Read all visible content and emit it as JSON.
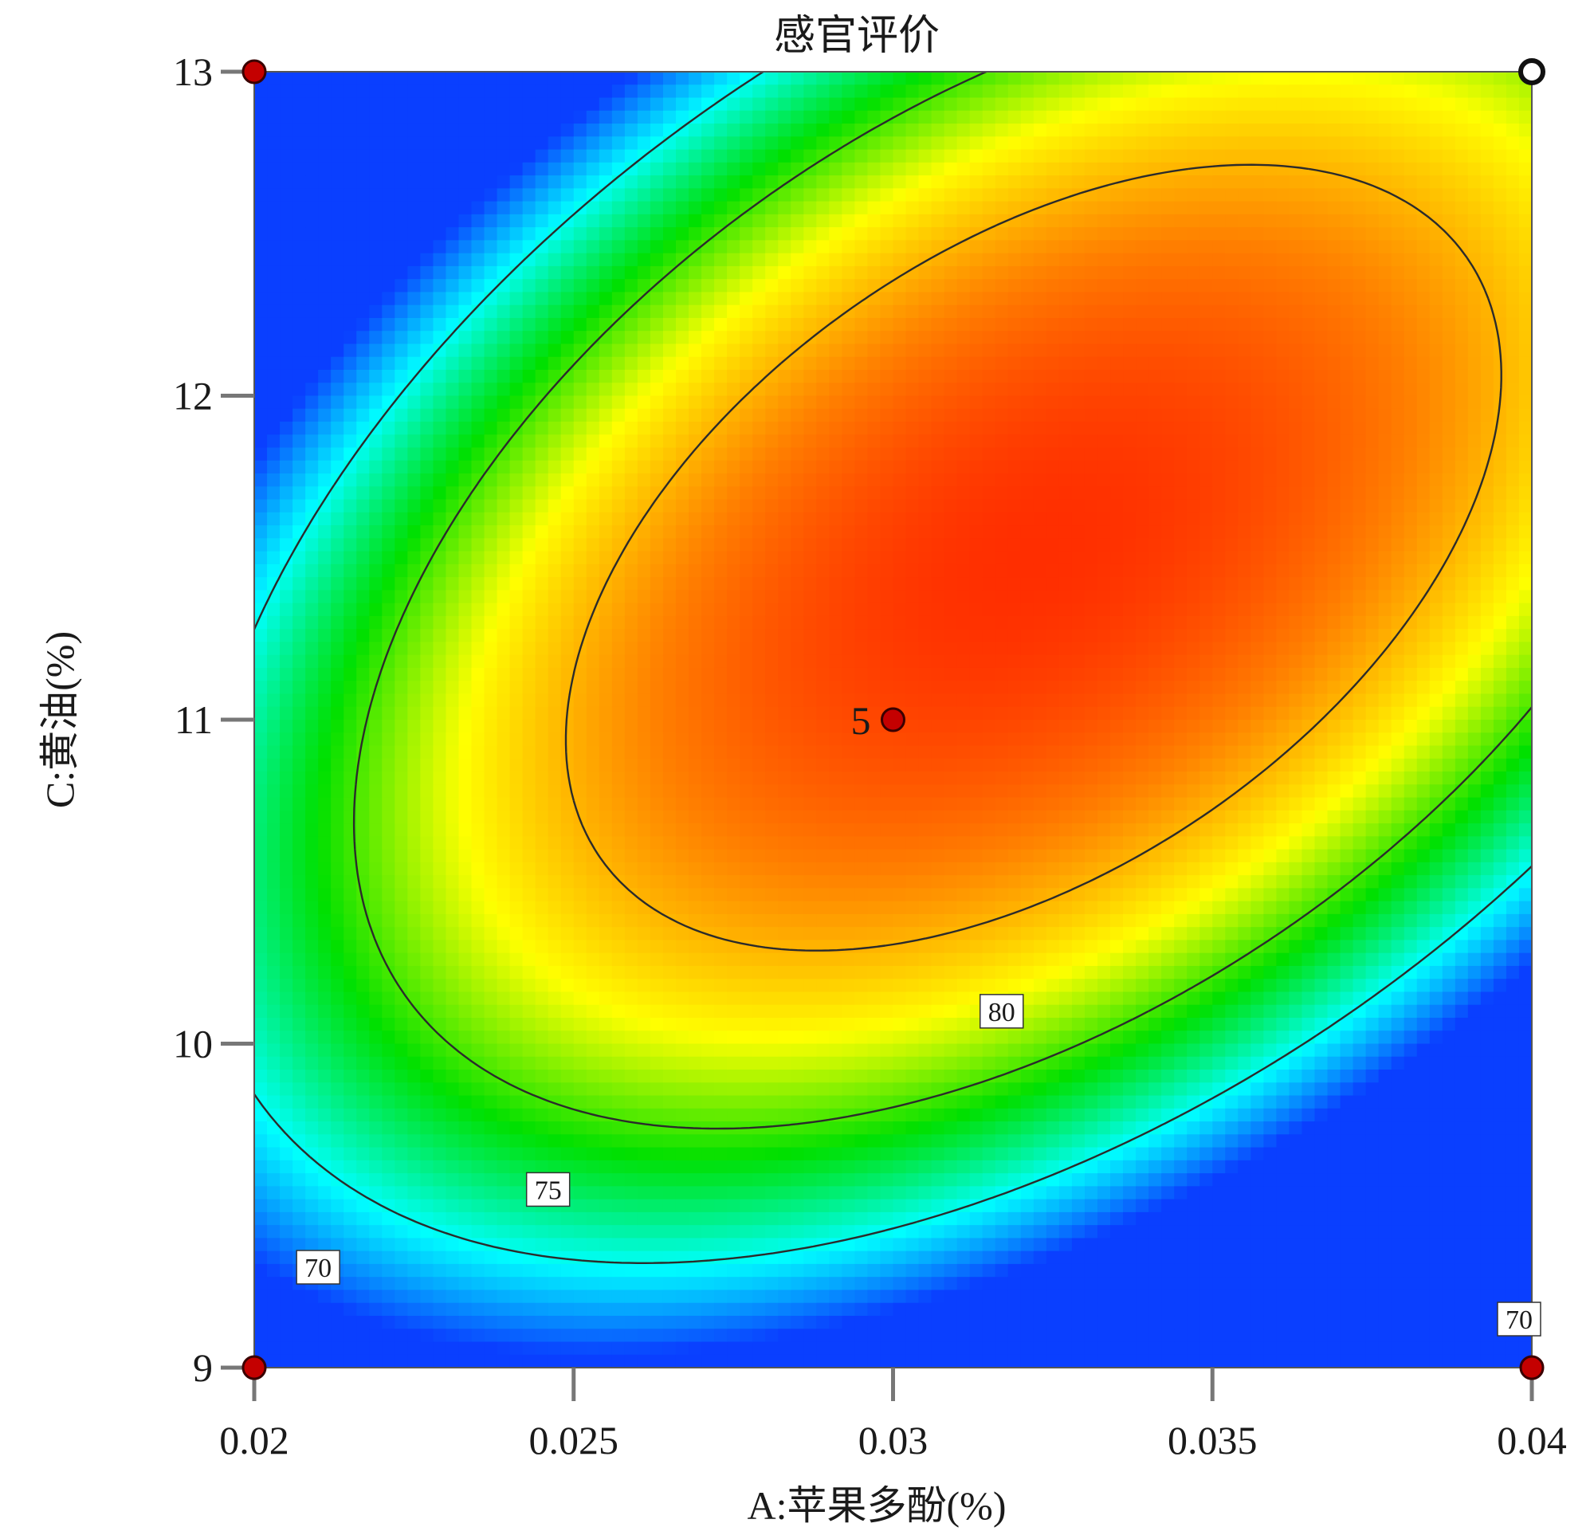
{
  "chart_data": {
    "type": "heatmap",
    "subtype": "contour",
    "title": "感官评价",
    "xlabel": "A:苹果多酚(%)",
    "ylabel": "C:黄油(%)",
    "xlim": [
      0.02,
      0.04
    ],
    "ylim": [
      9,
      13
    ],
    "x_ticks": [
      "0.02",
      "0.025",
      "0.03",
      "0.035",
      "0.04"
    ],
    "y_ticks": [
      "9",
      "10",
      "11",
      "12",
      "13"
    ],
    "color_scale": [
      "#0a3fff",
      "#00ffff",
      "#00e000",
      "#ffff00",
      "#ff8000",
      "#ff2000"
    ],
    "contour_levels": [
      70,
      75,
      80
    ],
    "contour_labels": [
      {
        "text": "80",
        "x": 0.0317,
        "y": 10.1
      },
      {
        "text": "75",
        "x": 0.0246,
        "y": 9.55
      },
      {
        "text": "70",
        "x": 0.021,
        "y": 9.31
      },
      {
        "text": "70",
        "x": 0.0398,
        "y": 9.15
      }
    ],
    "design_points": [
      {
        "x": 0.02,
        "y": 13,
        "style": "filled"
      },
      {
        "x": 0.04,
        "y": 13,
        "style": "open"
      },
      {
        "x": 0.02,
        "y": 9,
        "style": "filled"
      },
      {
        "x": 0.04,
        "y": 9,
        "style": "filled"
      },
      {
        "x": 0.03,
        "y": 11,
        "style": "filled",
        "label": "5"
      }
    ],
    "grid": false,
    "colors": {
      "contour_line": "#2b2b2b",
      "point_fill": "#c40000",
      "open_point_fill": "#ffffff"
    }
  }
}
